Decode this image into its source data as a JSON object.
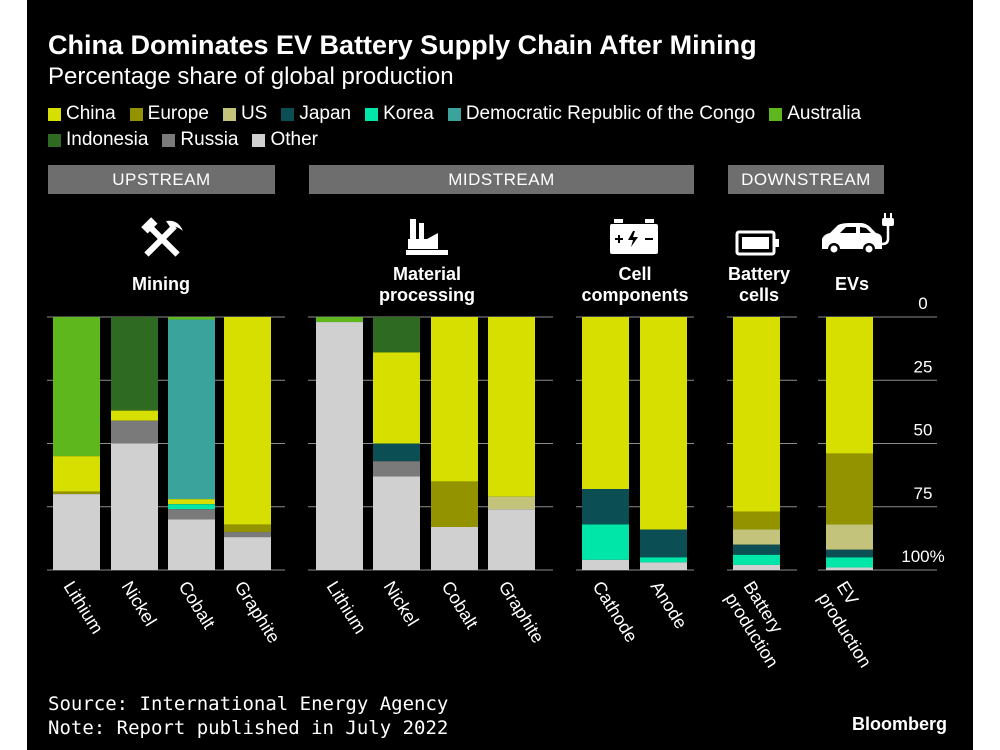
{
  "title": "China Dominates EV Battery Supply Chain After Mining",
  "subtitle": "Percentage share of global production",
  "legend": [
    {
      "name": "China",
      "color": "#d7df00"
    },
    {
      "name": "Europe",
      "color": "#939300"
    },
    {
      "name": "US",
      "color": "#c3c37c"
    },
    {
      "name": "Japan",
      "color": "#0b4f55"
    },
    {
      "name": "Korea",
      "color": "#00e5a8"
    },
    {
      "name": "Democratic Republic of the Congo",
      "color": "#3aa39b"
    },
    {
      "name": "Australia",
      "color": "#5fb71e"
    },
    {
      "name": "Indonesia",
      "color": "#2f6a22"
    },
    {
      "name": "Russia",
      "color": "#7a7a7a"
    },
    {
      "name": "Other",
      "color": "#d0d0d0"
    }
  ],
  "sections": {
    "upstream": "UPSTREAM",
    "midstream": "MIDSTREAM",
    "downstream": "DOWNSTREAM"
  },
  "groups": {
    "mining": "Mining",
    "material": [
      "Material",
      "processing"
    ],
    "cell": [
      "Cell",
      "components"
    ],
    "battery": [
      "Battery",
      "cells"
    ],
    "evs": "EVs"
  },
  "icons": {
    "mining": "hammer-pickaxe-icon",
    "material": "factory-icon",
    "cell": "battery-cell-icon",
    "battery": "battery-icon",
    "evs": "electric-car-icon"
  },
  "source": "Source: International Energy Agency",
  "note": "Note: Report published in July 2022",
  "brand": "Bloomberg",
  "chart_data": {
    "type": "bar",
    "stacked": true,
    "orientation": "vertical",
    "y_inverted": true,
    "ylim": [
      0,
      100
    ],
    "yticks": [
      "0",
      "25",
      "50",
      "75",
      "100%"
    ],
    "categories": [
      {
        "label": "Lithium",
        "group": "Mining"
      },
      {
        "label": "Nickel",
        "group": "Mining"
      },
      {
        "label": "Cobalt",
        "group": "Mining"
      },
      {
        "label": "Graphite",
        "group": "Mining"
      },
      {
        "label": "Lithium",
        "group": "Material processing"
      },
      {
        "label": "Nickel",
        "group": "Material processing"
      },
      {
        "label": "Cobalt",
        "group": "Material processing"
      },
      {
        "label": "Graphite",
        "group": "Material processing"
      },
      {
        "label": "Cathode",
        "group": "Cell components"
      },
      {
        "label": "Anode",
        "group": "Cell components"
      },
      {
        "label": [
          "Battery",
          "production"
        ],
        "group": "Battery cells"
      },
      {
        "label": [
          "EV",
          "production"
        ],
        "group": "EVs"
      }
    ],
    "series": [
      {
        "name": "Australia",
        "values": [
          55,
          0,
          1,
          0,
          2,
          0,
          0,
          0,
          0,
          0,
          0,
          0
        ]
      },
      {
        "name": "Indonesia",
        "values": [
          0,
          37,
          0,
          0,
          0,
          14,
          0,
          0,
          0,
          0,
          0,
          0
        ]
      },
      {
        "name": "Democratic Republic of the Congo",
        "values": [
          0,
          0,
          71,
          0,
          0,
          0,
          0,
          0,
          0,
          0,
          0,
          0
        ]
      },
      {
        "name": "China",
        "values": [
          14,
          4,
          2,
          82,
          0,
          36,
          65,
          71,
          68,
          84,
          77,
          54
        ]
      },
      {
        "name": "Europe",
        "values": [
          1,
          0,
          0,
          3,
          0,
          0,
          18,
          0,
          0,
          0,
          7,
          28
        ]
      },
      {
        "name": "US",
        "values": [
          0,
          0,
          0,
          0,
          0,
          0,
          0,
          5,
          0,
          0,
          6,
          10
        ]
      },
      {
        "name": "Japan",
        "values": [
          0,
          0,
          0,
          0,
          0,
          7,
          0,
          0,
          14,
          11,
          4,
          3
        ]
      },
      {
        "name": "Korea",
        "values": [
          0,
          0,
          2,
          0,
          0,
          0,
          0,
          0,
          14,
          2,
          4,
          4
        ]
      },
      {
        "name": "Russia",
        "values": [
          0,
          9,
          4,
          2,
          0,
          6,
          0,
          0,
          0,
          0,
          0,
          0
        ]
      },
      {
        "name": "Other",
        "values": [
          30,
          50,
          20,
          13,
          98,
          37,
          17,
          24,
          4,
          3,
          2,
          1
        ]
      }
    ]
  }
}
